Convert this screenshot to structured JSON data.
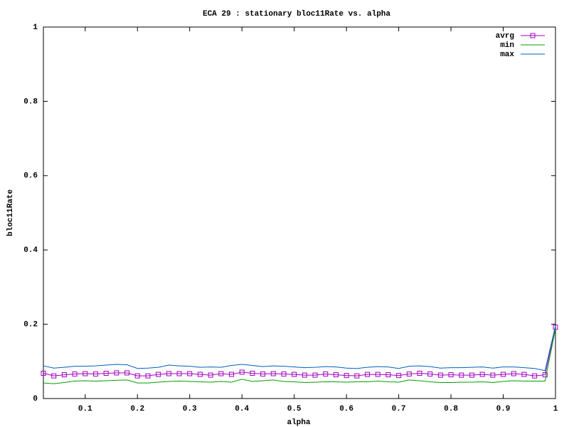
{
  "chart_data": {
    "type": "line",
    "title": "ECA 29 : stationary bloc11Rate vs. alpha",
    "xlabel": "alpha",
    "ylabel": "bloc11Rate",
    "x": [
      0.02,
      0.04,
      0.06,
      0.08,
      0.1,
      0.12,
      0.14,
      0.16,
      0.18,
      0.2,
      0.22,
      0.24,
      0.26,
      0.28,
      0.3,
      0.32,
      0.34,
      0.36,
      0.38,
      0.4,
      0.42,
      0.44,
      0.46,
      0.48,
      0.5,
      0.52,
      0.54,
      0.56,
      0.58,
      0.6,
      0.62,
      0.64,
      0.66,
      0.68,
      0.7,
      0.72,
      0.74,
      0.76,
      0.78,
      0.8,
      0.82,
      0.84,
      0.86,
      0.88,
      0.9,
      0.92,
      0.94,
      0.96,
      0.98,
      1
    ],
    "series": [
      {
        "name": "avrg",
        "color": "#a000c0",
        "marker": "square",
        "values": [
          0.068,
          0.061,
          0.064,
          0.066,
          0.067,
          0.066,
          0.068,
          0.069,
          0.069,
          0.061,
          0.061,
          0.065,
          0.067,
          0.067,
          0.067,
          0.065,
          0.063,
          0.067,
          0.065,
          0.071,
          0.068,
          0.066,
          0.067,
          0.066,
          0.065,
          0.063,
          0.063,
          0.066,
          0.064,
          0.062,
          0.061,
          0.065,
          0.065,
          0.064,
          0.062,
          0.066,
          0.068,
          0.066,
          0.063,
          0.064,
          0.063,
          0.063,
          0.065,
          0.063,
          0.065,
          0.067,
          0.065,
          0.061,
          0.064,
          0.192
        ]
      },
      {
        "name": "min",
        "color": "#00a000",
        "values": [
          0.042,
          0.04,
          0.043,
          0.047,
          0.048,
          0.047,
          0.048,
          0.049,
          0.05,
          0.042,
          0.042,
          0.044,
          0.046,
          0.047,
          0.046,
          0.045,
          0.044,
          0.046,
          0.044,
          0.052,
          0.046,
          0.048,
          0.05,
          0.046,
          0.045,
          0.043,
          0.044,
          0.045,
          0.045,
          0.044,
          0.045,
          0.045,
          0.047,
          0.045,
          0.044,
          0.05,
          0.048,
          0.045,
          0.043,
          0.043,
          0.044,
          0.044,
          0.045,
          0.043,
          0.046,
          0.048,
          0.047,
          0.047,
          0.047,
          0.188
        ]
      },
      {
        "name": "max",
        "color": "#0060c0",
        "values": [
          0.088,
          0.082,
          0.084,
          0.087,
          0.087,
          0.088,
          0.09,
          0.092,
          0.091,
          0.081,
          0.082,
          0.084,
          0.09,
          0.088,
          0.087,
          0.084,
          0.085,
          0.084,
          0.089,
          0.092,
          0.089,
          0.086,
          0.088,
          0.087,
          0.085,
          0.083,
          0.084,
          0.086,
          0.085,
          0.082,
          0.081,
          0.084,
          0.086,
          0.085,
          0.081,
          0.087,
          0.088,
          0.086,
          0.082,
          0.083,
          0.083,
          0.084,
          0.085,
          0.082,
          0.085,
          0.085,
          0.083,
          0.081,
          0.075,
          0.196
        ]
      }
    ],
    "xlim": [
      0.02,
      1
    ],
    "ylim": [
      0,
      1
    ],
    "xticks": [
      0.1,
      0.2,
      0.3,
      0.4,
      0.5,
      0.6,
      0.7,
      0.8,
      0.9,
      1
    ],
    "yticks": [
      0,
      0.2,
      0.4,
      0.6,
      0.8,
      1
    ],
    "legend": "top-right",
    "grid": false
  }
}
